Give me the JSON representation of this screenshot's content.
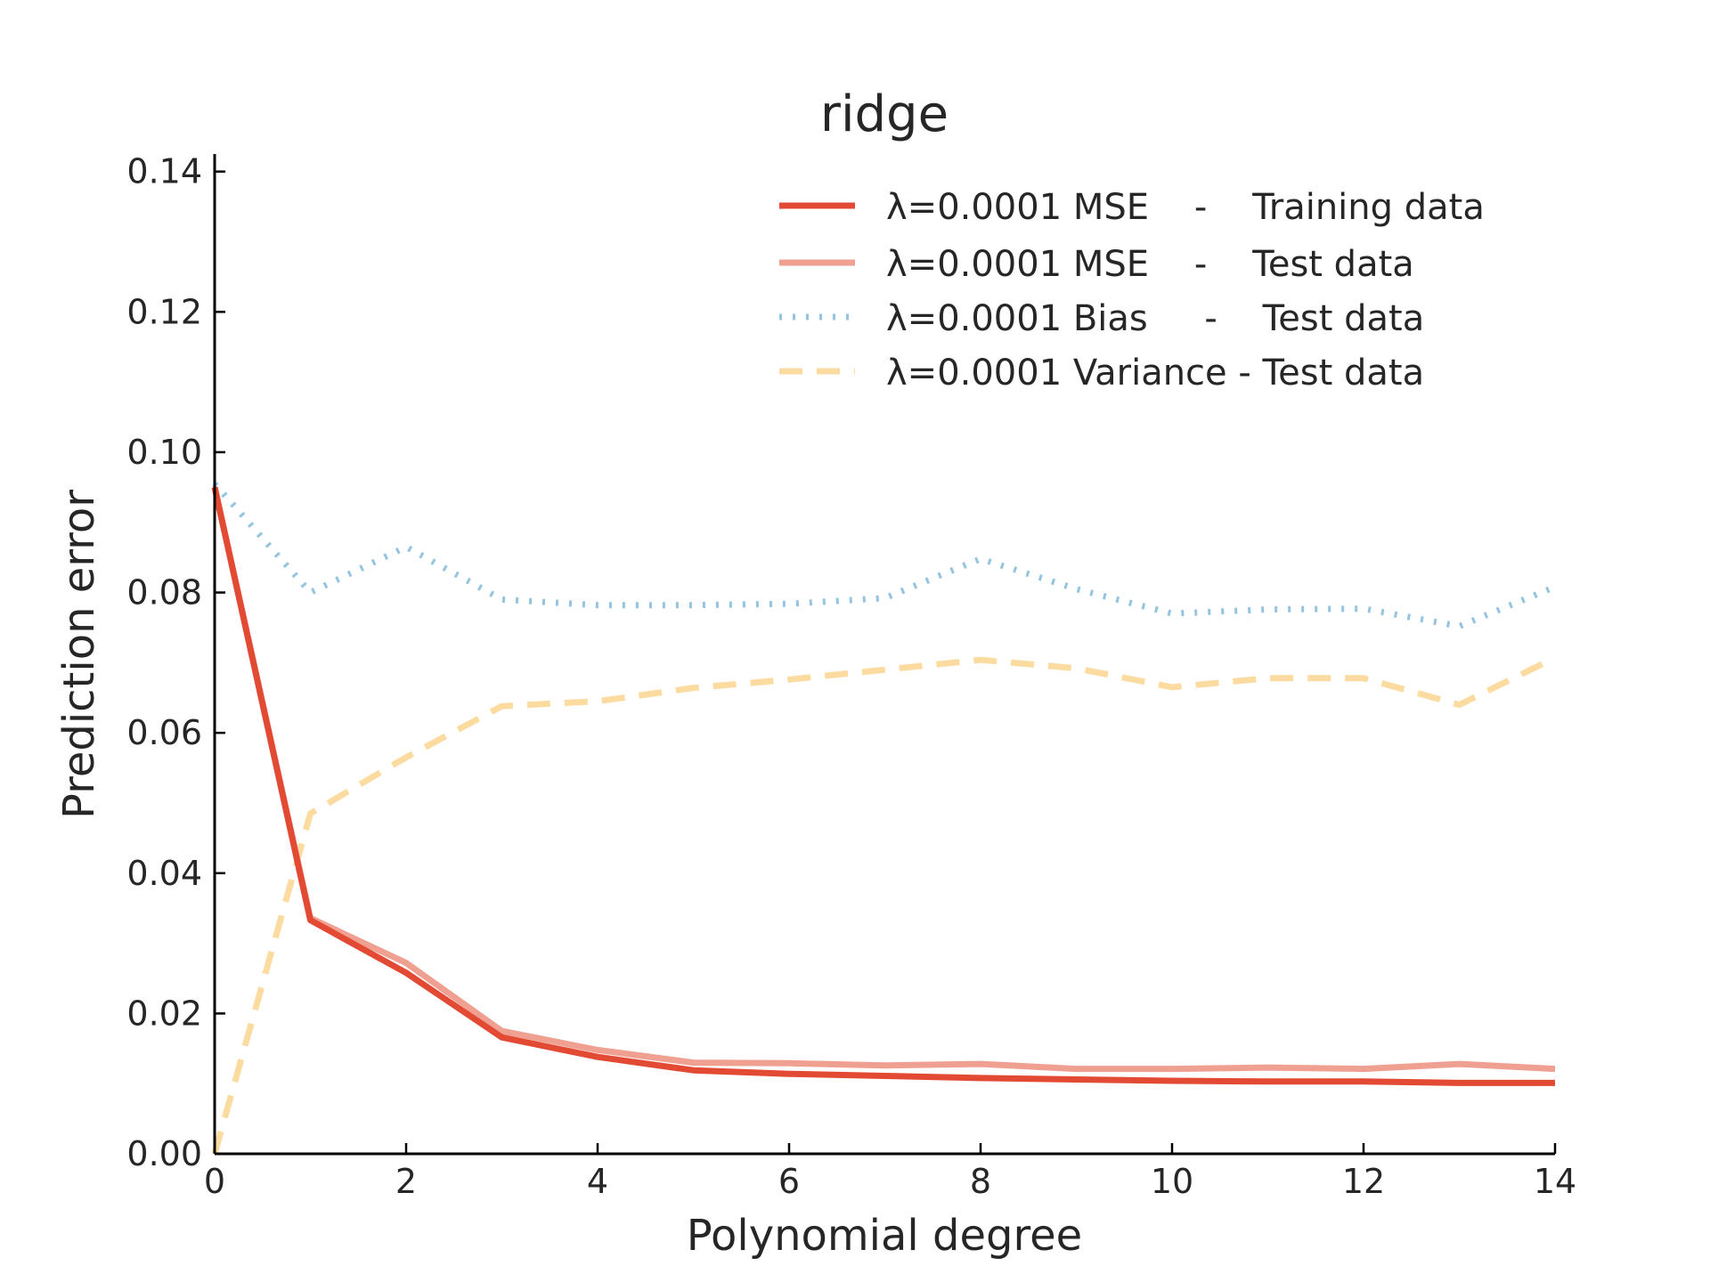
{
  "chart_data": {
    "type": "line",
    "title": "ridge",
    "xlabel": "Polynomial degree",
    "ylabel": "Prediction error",
    "xlim": [
      0,
      14
    ],
    "ylim": [
      0,
      0.1425
    ],
    "grid": false,
    "legend_position": "top-right",
    "x_ticks": [
      "0",
      "2",
      "4",
      "6",
      "8",
      "10",
      "12",
      "14"
    ],
    "y_ticks": [
      "0.00",
      "0.02",
      "0.04",
      "0.06",
      "0.08",
      "0.10",
      "0.12",
      "0.14"
    ],
    "x": [
      0,
      1,
      2,
      3,
      4,
      5,
      6,
      7,
      8,
      9,
      10,
      11,
      12,
      13,
      14
    ],
    "series": [
      {
        "name": "λ=0.0001 MSE    -    Training data",
        "color": "#e24a33",
        "style": "solid",
        "values": [
          0.095,
          0.0333,
          0.0258,
          0.0166,
          0.0138,
          0.0119,
          0.0114,
          0.0111,
          0.0108,
          0.0106,
          0.0104,
          0.0103,
          0.0103,
          0.0101,
          0.0101
        ]
      },
      {
        "name": "λ=0.0001 MSE    -    Test data",
        "color": "#f0a090",
        "style": "solid",
        "values": [
          0.095,
          0.0336,
          0.0272,
          0.0175,
          0.0148,
          0.013,
          0.0129,
          0.0126,
          0.0128,
          0.0121,
          0.0121,
          0.0123,
          0.0121,
          0.0128,
          0.0121
        ]
      },
      {
        "name": "λ=0.0001 Bias     -    Test data",
        "color": "#94c4df",
        "style": "dotted",
        "values": [
          0.0955,
          0.08,
          0.0865,
          0.079,
          0.0782,
          0.0782,
          0.0784,
          0.0792,
          0.0848,
          0.0805,
          0.077,
          0.0776,
          0.0777,
          0.0752,
          0.0808
        ]
      },
      {
        "name": "λ=0.0001 Variance - Test data",
        "color": "#fcdba1",
        "style": "dashed",
        "values": [
          0.0,
          0.0485,
          0.0565,
          0.0638,
          0.0645,
          0.0664,
          0.0676,
          0.069,
          0.0704,
          0.0692,
          0.0665,
          0.0678,
          0.0678,
          0.064,
          0.0707
        ]
      }
    ]
  }
}
